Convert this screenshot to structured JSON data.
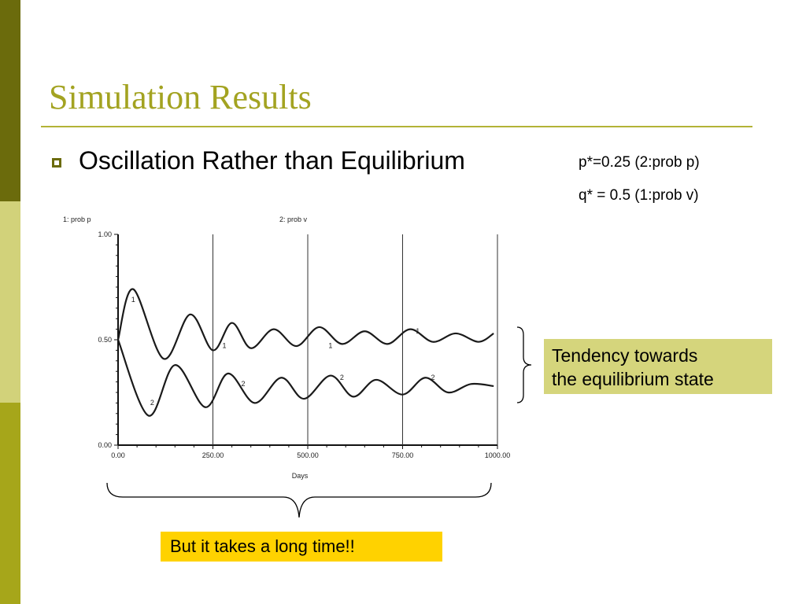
{
  "slide": {
    "title": "Simulation Results",
    "bullet": "Oscillation Rather than Equilibrium",
    "notes": [
      "p*=0.25 (2:prob p)",
      "q* = 0.5 (1:prob v)"
    ],
    "tendency_box": [
      "Tendency towards",
      "the equilibrium state"
    ],
    "time_box": "But it takes a long time!!",
    "colors": {
      "accent": "#a3a321",
      "sidebar_dark": "#6b6b0c",
      "sidebar_light": "#d2d27a",
      "sidebar_mid": "#a6a61a",
      "box_green": "#d5d57c",
      "box_yellow": "#ffd200"
    }
  },
  "chart_data": {
    "type": "line",
    "legend": [
      "1: prob p",
      "2: prob v"
    ],
    "xlabel": "Days",
    "x_ticks": [
      "0.00",
      "250.00",
      "500.00",
      "750.00",
      "1000.00"
    ],
    "y_ticks": [
      "1.00",
      "0.50",
      "0.00"
    ],
    "xlim": [
      0,
      1000
    ],
    "ylim": [
      0,
      1
    ],
    "grid": "vertical",
    "series": [
      {
        "name": "1",
        "x": [
          0,
          40,
          120,
          190,
          250,
          300,
          350,
          410,
          470,
          530,
          590,
          650,
          710,
          770,
          830,
          890,
          950,
          990
        ],
        "y": [
          0.5,
          0.74,
          0.41,
          0.62,
          0.45,
          0.58,
          0.46,
          0.55,
          0.47,
          0.56,
          0.48,
          0.54,
          0.48,
          0.55,
          0.49,
          0.53,
          0.49,
          0.53
        ],
        "markers": [
          {
            "x": 40,
            "y": 0.68
          },
          {
            "x": 280,
            "y": 0.46
          },
          {
            "x": 560,
            "y": 0.46
          },
          {
            "x": 790,
            "y": 0.53
          }
        ]
      },
      {
        "name": "2",
        "x": [
          0,
          80,
          150,
          230,
          290,
          360,
          430,
          490,
          560,
          620,
          680,
          750,
          810,
          870,
          930,
          990
        ],
        "y": [
          0.5,
          0.14,
          0.38,
          0.18,
          0.34,
          0.2,
          0.32,
          0.22,
          0.33,
          0.23,
          0.31,
          0.24,
          0.32,
          0.25,
          0.29,
          0.28
        ],
        "markers": [
          {
            "x": 90,
            "y": 0.19
          },
          {
            "x": 330,
            "y": 0.28
          },
          {
            "x": 590,
            "y": 0.31
          },
          {
            "x": 830,
            "y": 0.31
          }
        ]
      }
    ]
  }
}
